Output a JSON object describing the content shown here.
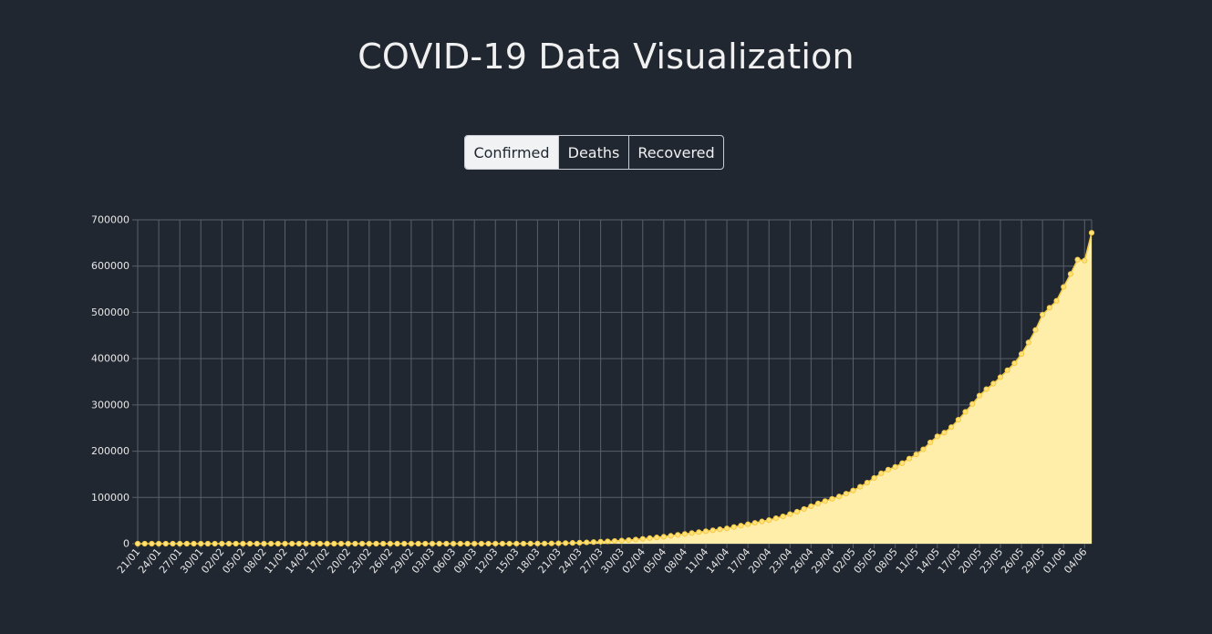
{
  "page": {
    "title": "COVID-19 Data Visualization"
  },
  "tabs": [
    {
      "label": "Confirmed",
      "active": true
    },
    {
      "label": "Deaths",
      "active": false
    },
    {
      "label": "Recovered",
      "active": false
    }
  ],
  "colors": {
    "background": "#212731",
    "grid": "#5a606a",
    "line": "#f4c842",
    "fill": "#ffeeaa",
    "point": "#ffe27a"
  },
  "chart_data": {
    "type": "area",
    "title": "",
    "xlabel": "",
    "ylabel": "",
    "ylim": [
      0,
      700000
    ],
    "yticks": [
      0,
      100000,
      200000,
      300000,
      400000,
      500000,
      600000,
      700000
    ],
    "grid": true,
    "x_tick_labels": [
      "21/01",
      "24/01",
      "27/01",
      "30/01",
      "02/02",
      "05/02",
      "08/02",
      "11/02",
      "14/02",
      "17/02",
      "20/02",
      "23/02",
      "26/02",
      "29/02",
      "03/03",
      "06/03",
      "09/03",
      "12/03",
      "15/03",
      "18/03",
      "21/03",
      "24/03",
      "27/03",
      "30/03",
      "02/04",
      "05/04",
      "08/04",
      "11/04",
      "14/04",
      "17/04",
      "20/04",
      "23/04",
      "26/04",
      "29/04",
      "02/05",
      "05/05",
      "08/05",
      "11/05",
      "14/05",
      "17/05",
      "20/05",
      "23/05",
      "26/05",
      "29/05",
      "01/06",
      "04/06"
    ],
    "x_start": "21/01",
    "x_end": "05/06",
    "values": [
      0,
      0,
      0,
      0,
      0,
      0,
      0,
      0,
      0,
      0,
      0,
      0,
      0,
      0,
      0,
      0,
      0,
      0,
      0,
      0,
      0,
      0,
      0,
      0,
      0,
      0,
      0,
      0,
      0,
      0,
      0,
      0,
      0,
      0,
      0,
      0,
      0,
      0,
      0,
      0,
      0,
      0,
      0,
      0,
      1,
      1,
      2,
      3,
      3,
      5,
      10,
      20,
      40,
      70,
      100,
      150,
      200,
      300,
      400,
      600,
      900,
      1300,
      1700,
      2200,
      2800,
      3500,
      4200,
      5000,
      5800,
      6800,
      7800,
      9000,
      10500,
      12000,
      13500,
      15000,
      17000,
      19000,
      21000,
      23000,
      25000,
      27000,
      29000,
      31000,
      33000,
      36000,
      39000,
      42000,
      45000,
      48000,
      51000,
      55000,
      59000,
      64000,
      69000,
      75000,
      81000,
      87000,
      92000,
      97000,
      102000,
      108000,
      115000,
      123000,
      132000,
      142000,
      152000,
      160000,
      166000,
      174000,
      184000,
      193000,
      204000,
      219000,
      232000,
      240000,
      252000,
      268000,
      285000,
      302000,
      320000,
      334000,
      346000,
      360000,
      375000,
      390000,
      410000,
      435000,
      462000,
      495000,
      510000,
      525000,
      555000,
      583000,
      614000,
      612000,
      672000
    ]
  }
}
